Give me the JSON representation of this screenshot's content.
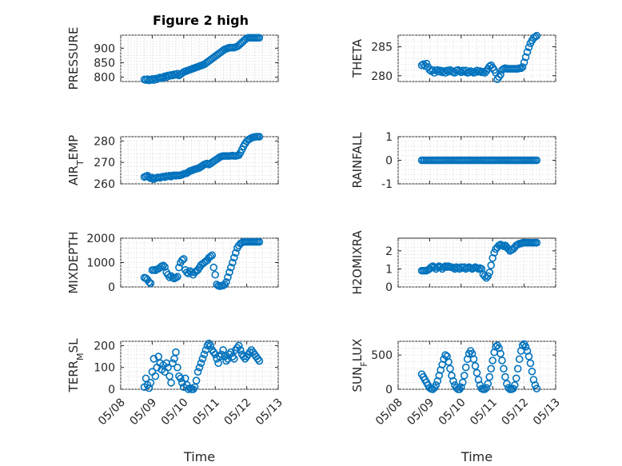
{
  "figure": {
    "title": "Figure 2 high"
  },
  "colors": {
    "marker": "#0072BD",
    "axes": "#262626",
    "grid": "#d9d9d9"
  },
  "x_ticks": [
    "05/08",
    "05/09",
    "05/10",
    "05/11",
    "05/12",
    "05/13"
  ],
  "chart_data": [
    {
      "type": "scatter",
      "ylabel": "PRESSURE",
      "title": "Figure 2 high",
      "xlabel": "",
      "ylim": [
        785,
        945
      ],
      "yticks": [
        800,
        850,
        900
      ],
      "grid": true,
      "x_range": [
        "05/08",
        "05/13"
      ],
      "x": [
        0.75,
        0.8,
        0.85,
        0.9,
        0.95,
        1.0,
        1.05,
        1.1,
        1.15,
        1.2,
        1.25,
        1.3,
        1.35,
        1.4,
        1.45,
        1.5,
        1.55,
        1.6,
        1.65,
        1.7,
        1.75,
        1.8,
        1.85,
        1.9,
        1.95,
        2.0,
        2.05,
        2.1,
        2.15,
        2.2,
        2.25,
        2.3,
        2.35,
        2.4,
        2.45,
        2.5,
        2.55,
        2.6,
        2.65,
        2.7,
        2.75,
        2.8,
        2.85,
        2.9,
        2.95,
        3.0,
        3.05,
        3.1,
        3.15,
        3.2,
        3.25,
        3.3,
        3.35,
        3.4,
        3.45,
        3.5,
        3.55,
        3.6,
        3.65,
        3.7,
        3.75,
        3.8,
        3.85,
        3.9,
        3.95,
        4.0,
        4.05,
        4.1,
        4.15,
        4.2,
        4.25,
        4.3,
        4.35,
        4.4
      ],
      "y": [
        792,
        790,
        793,
        789,
        791,
        794,
        790,
        795,
        793,
        797,
        799,
        796,
        800,
        803,
        800,
        806,
        804,
        808,
        806,
        810,
        808,
        812,
        806,
        810,
        814,
        818,
        820,
        822,
        824,
        826,
        828,
        830,
        832,
        834,
        836,
        838,
        840,
        842,
        844,
        848,
        852,
        856,
        860,
        864,
        868,
        872,
        876,
        880,
        884,
        888,
        892,
        896,
        898,
        900,
        902,
        902,
        902,
        902,
        904,
        906,
        910,
        915,
        920,
        925,
        930,
        934,
        936,
        936,
        936,
        936,
        936,
        936,
        936,
        936
      ]
    },
    {
      "type": "scatter",
      "ylabel": "THETA",
      "xlabel": "",
      "ylim": [
        279,
        287
      ],
      "yticks": [
        280,
        285
      ],
      "grid": true,
      "x_range": [
        "05/08",
        "05/13"
      ],
      "x": [
        0.75,
        0.8,
        0.85,
        0.9,
        0.95,
        1.0,
        1.05,
        1.1,
        1.15,
        1.2,
        1.25,
        1.3,
        1.35,
        1.4,
        1.45,
        1.5,
        1.55,
        1.6,
        1.65,
        1.7,
        1.75,
        1.8,
        1.85,
        1.9,
        1.95,
        2.0,
        2.05,
        2.1,
        2.15,
        2.2,
        2.25,
        2.3,
        2.35,
        2.4,
        2.45,
        2.5,
        2.55,
        2.6,
        2.65,
        2.7,
        2.75,
        2.8,
        2.85,
        2.9,
        2.95,
        3.0,
        3.05,
        3.1,
        3.15,
        3.2,
        3.25,
        3.3,
        3.35,
        3.4,
        3.45,
        3.5,
        3.55,
        3.6,
        3.65,
        3.7,
        3.75,
        3.8,
        3.85,
        3.9,
        3.95,
        4.0,
        4.05,
        4.1,
        4.15,
        4.2,
        4.25,
        4.3,
        4.35,
        4.4
      ],
      "y": [
        281.8,
        282.0,
        281.7,
        282.1,
        281.5,
        281.0,
        280.8,
        281.0,
        280.5,
        280.9,
        281.0,
        280.7,
        280.9,
        280.6,
        280.8,
        280.5,
        280.9,
        280.7,
        281.0,
        280.8,
        280.6,
        280.5,
        280.9,
        281.0,
        280.8,
        280.6,
        280.9,
        280.7,
        280.9,
        280.5,
        280.6,
        280.8,
        280.7,
        280.5,
        280.6,
        280.9,
        280.7,
        280.8,
        280.6,
        280.7,
        280.5,
        280.8,
        281.2,
        281.6,
        281.8,
        281.4,
        281.0,
        280.5,
        279.4,
        279.8,
        280.2,
        281.0,
        281.2,
        281.3,
        281.2,
        281.2,
        281.2,
        281.2,
        281.2,
        281.2,
        281.2,
        281.2,
        281.3,
        281.3,
        281.5,
        282.3,
        283.2,
        284.1,
        284.9,
        285.6,
        286.1,
        286.5,
        286.7,
        286.9
      ]
    },
    {
      "type": "scatter",
      "ylabel": "AIR_TEMP",
      "xlabel": "",
      "ylim": [
        260,
        282
      ],
      "yticks": [
        260,
        270,
        280
      ],
      "grid": true,
      "x_range": [
        "05/08",
        "05/13"
      ],
      "x": [
        0.75,
        0.8,
        0.85,
        0.9,
        0.95,
        1.0,
        1.05,
        1.1,
        1.15,
        1.2,
        1.25,
        1.3,
        1.35,
        1.4,
        1.45,
        1.5,
        1.55,
        1.6,
        1.65,
        1.7,
        1.75,
        1.8,
        1.85,
        1.9,
        1.95,
        2.0,
        2.05,
        2.1,
        2.15,
        2.2,
        2.25,
        2.3,
        2.35,
        2.4,
        2.45,
        2.5,
        2.55,
        2.6,
        2.65,
        2.7,
        2.75,
        2.8,
        2.85,
        2.9,
        2.95,
        3.0,
        3.05,
        3.1,
        3.15,
        3.2,
        3.25,
        3.3,
        3.35,
        3.4,
        3.45,
        3.5,
        3.55,
        3.6,
        3.65,
        3.7,
        3.75,
        3.8,
        3.85,
        3.9,
        3.95,
        4.0,
        4.05,
        4.1,
        4.15,
        4.2,
        4.25,
        4.3,
        4.35,
        4.4
      ],
      "y": [
        263.2,
        263.5,
        263.8,
        263.1,
        262.6,
        262.9,
        262.2,
        262.6,
        262.9,
        263.0,
        262.8,
        263.2,
        263.4,
        263.1,
        263.6,
        263.5,
        263.8,
        263.4,
        263.9,
        264.0,
        263.8,
        264.0,
        263.9,
        264.0,
        264.3,
        264.6,
        264.8,
        265.0,
        265.5,
        266.0,
        266.2,
        266.5,
        266.8,
        267.0,
        267.2,
        267.5,
        268.0,
        268.5,
        269.0,
        269.3,
        269.5,
        269.0,
        269.4,
        270.0,
        270.5,
        271.0,
        271.5,
        272.0,
        272.5,
        272.8,
        273.0,
        273.0,
        273.0,
        273.0,
        273.0,
        273.1,
        273.2,
        273.0,
        273.0,
        273.2,
        273.4,
        274.5,
        276.0,
        277.5,
        278.8,
        279.8,
        280.5,
        281.0,
        281.4,
        281.7,
        281.9,
        282.0,
        282.0,
        282.0
      ]
    },
    {
      "type": "scatter",
      "ylabel": "RAINFALL",
      "xlabel": "",
      "ylim": [
        -1,
        1
      ],
      "yticks": [
        -1,
        0,
        1
      ],
      "grid": true,
      "x_range": [
        "05/08",
        "05/13"
      ],
      "x": [
        0.75,
        0.8,
        0.85,
        0.9,
        0.95,
        1.0,
        1.05,
        1.1,
        1.15,
        1.2,
        1.25,
        1.3,
        1.35,
        1.4,
        1.45,
        1.5,
        1.55,
        1.6,
        1.65,
        1.7,
        1.75,
        1.8,
        1.85,
        1.9,
        1.95,
        2.0,
        2.05,
        2.1,
        2.15,
        2.2,
        2.25,
        2.3,
        2.35,
        2.4,
        2.45,
        2.5,
        2.55,
        2.6,
        2.65,
        2.7,
        2.75,
        2.8,
        2.85,
        2.9,
        2.95,
        3.0,
        3.05,
        3.1,
        3.15,
        3.2,
        3.25,
        3.3,
        3.35,
        3.4,
        3.45,
        3.5,
        3.55,
        3.6,
        3.65,
        3.7,
        3.75,
        3.8,
        3.85,
        3.9,
        3.95,
        4.0,
        4.05,
        4.1,
        4.15,
        4.2,
        4.25,
        4.3,
        4.35,
        4.4
      ],
      "y": [
        0,
        0,
        0,
        0,
        0,
        0,
        0,
        0,
        0,
        0,
        0,
        0,
        0,
        0,
        0,
        0,
        0,
        0,
        0,
        0,
        0,
        0,
        0,
        0,
        0,
        0,
        0,
        0,
        0,
        0,
        0,
        0,
        0,
        0,
        0,
        0,
        0,
        0,
        0,
        0,
        0,
        0,
        0,
        0,
        0,
        0,
        0,
        0,
        0,
        0,
        0,
        0,
        0,
        0,
        0,
        0,
        0,
        0,
        0,
        0,
        0,
        0,
        0,
        0,
        0,
        0,
        0,
        0,
        0,
        0,
        0,
        0,
        0,
        0
      ]
    },
    {
      "type": "scatter",
      "ylabel": "MIXDEPTH",
      "xlabel": "",
      "ylim": [
        0,
        2000
      ],
      "yticks": [
        0,
        1000,
        2000
      ],
      "grid": true,
      "x_range": [
        "05/08",
        "05/13"
      ],
      "x": [
        0.75,
        0.8,
        0.85,
        0.9,
        0.95,
        1.0,
        1.05,
        1.1,
        1.15,
        1.2,
        1.25,
        1.3,
        1.35,
        1.4,
        1.45,
        1.5,
        1.55,
        1.6,
        1.65,
        1.7,
        1.75,
        1.8,
        1.85,
        1.9,
        1.95,
        2.0,
        2.05,
        2.1,
        2.15,
        2.2,
        2.25,
        2.3,
        2.35,
        2.4,
        2.45,
        2.5,
        2.55,
        2.6,
        2.65,
        2.7,
        2.75,
        2.8,
        2.85,
        2.9,
        2.95,
        3.0,
        3.05,
        3.1,
        3.15,
        3.2,
        3.25,
        3.3,
        3.35,
        3.4,
        3.45,
        3.5,
        3.55,
        3.6,
        3.65,
        3.7,
        3.75,
        3.8,
        3.85,
        3.9,
        3.95,
        4.0,
        4.05,
        4.1,
        4.15,
        4.2,
        4.25,
        4.3,
        4.35,
        4.4
      ],
      "y": [
        380,
        360,
        300,
        200,
        150,
        690,
        700,
        680,
        720,
        750,
        800,
        850,
        880,
        820,
        600,
        500,
        400,
        450,
        380,
        350,
        380,
        420,
        800,
        1000,
        1100,
        1150,
        700,
        600,
        550,
        650,
        600,
        500,
        600,
        650,
        700,
        800,
        900,
        950,
        1000,
        1050,
        1100,
        1200,
        1250,
        1300,
        800,
        500,
        100,
        50,
        30,
        50,
        60,
        100,
        200,
        400,
        600,
        800,
        1000,
        1200,
        1400,
        1600,
        1700,
        1780,
        1820,
        1850,
        1850,
        1850,
        1850,
        1850,
        1850,
        1850,
        1850,
        1850,
        1850,
        1850
      ]
    },
    {
      "type": "scatter",
      "ylabel": "H2OMIXRA",
      "xlabel": "",
      "ylim": [
        0,
        2.7
      ],
      "yticks": [
        0,
        1,
        2
      ],
      "grid": true,
      "x_range": [
        "05/08",
        "05/13"
      ],
      "x": [
        0.75,
        0.8,
        0.85,
        0.9,
        0.95,
        1.0,
        1.05,
        1.1,
        1.15,
        1.2,
        1.25,
        1.3,
        1.35,
        1.4,
        1.45,
        1.5,
        1.55,
        1.6,
        1.65,
        1.7,
        1.75,
        1.8,
        1.85,
        1.9,
        1.95,
        2.0,
        2.05,
        2.1,
        2.15,
        2.2,
        2.25,
        2.3,
        2.35,
        2.4,
        2.45,
        2.5,
        2.55,
        2.6,
        2.65,
        2.7,
        2.75,
        2.8,
        2.85,
        2.9,
        2.95,
        3.0,
        3.05,
        3.1,
        3.15,
        3.2,
        3.25,
        3.3,
        3.35,
        3.4,
        3.45,
        3.5,
        3.55,
        3.6,
        3.65,
        3.7,
        3.75,
        3.8,
        3.85,
        3.9,
        3.95,
        4.0,
        4.05,
        4.1,
        4.15,
        4.2,
        4.25,
        4.3,
        4.35,
        4.4
      ],
      "y": [
        0.9,
        0.9,
        0.9,
        0.9,
        0.95,
        1.0,
        1.1,
        1.15,
        1.1,
        1.0,
        1.1,
        1.15,
        1.1,
        1.0,
        1.1,
        1.15,
        1.1,
        1.15,
        1.1,
        1.1,
        1.05,
        1.0,
        1.1,
        1.05,
        1.0,
        1.1,
        1.05,
        1.1,
        1.0,
        1.05,
        1.1,
        1.05,
        1.0,
        1.05,
        1.1,
        1.05,
        1.0,
        1.05,
        1.0,
        0.7,
        0.6,
        0.5,
        0.6,
        0.8,
        1.2,
        1.6,
        1.9,
        2.1,
        2.2,
        2.3,
        2.35,
        2.3,
        2.25,
        2.3,
        2.2,
        2.1,
        2.0,
        2.05,
        2.1,
        2.2,
        2.3,
        2.35,
        2.4,
        2.4,
        2.45,
        2.45,
        2.45,
        2.45,
        2.45,
        2.45,
        2.45,
        2.45,
        2.45,
        2.45
      ]
    },
    {
      "type": "scatter",
      "ylabel": "TERR_MSL",
      "xlabel": "Time",
      "ylim": [
        0,
        220
      ],
      "yticks": [
        0,
        100,
        200
      ],
      "grid": true,
      "x_range": [
        "05/08",
        "05/13"
      ],
      "x": [
        0.75,
        0.8,
        0.85,
        0.9,
        0.95,
        1.0,
        1.05,
        1.1,
        1.15,
        1.2,
        1.25,
        1.3,
        1.35,
        1.4,
        1.45,
        1.5,
        1.55,
        1.6,
        1.65,
        1.7,
        1.75,
        1.8,
        1.85,
        1.9,
        1.95,
        2.0,
        2.05,
        2.1,
        2.15,
        2.2,
        2.25,
        2.3,
        2.35,
        2.4,
        2.45,
        2.5,
        2.55,
        2.6,
        2.65,
        2.7,
        2.75,
        2.8,
        2.85,
        2.9,
        2.95,
        3.0,
        3.05,
        3.1,
        3.15,
        3.2,
        3.25,
        3.3,
        3.35,
        3.4,
        3.45,
        3.5,
        3.55,
        3.6,
        3.65,
        3.7,
        3.75,
        3.8,
        3.85,
        3.9,
        3.95,
        4.0,
        4.05,
        4.1,
        4.15,
        4.2,
        4.25,
        4.3,
        4.35,
        4.4
      ],
      "y": [
        10,
        50,
        20,
        5,
        30,
        80,
        140,
        60,
        100,
        150,
        120,
        90,
        110,
        80,
        120,
        100,
        60,
        30,
        120,
        140,
        170,
        100,
        60,
        50,
        30,
        10,
        50,
        20,
        0,
        5,
        0,
        0,
        10,
        40,
        80,
        100,
        120,
        140,
        160,
        180,
        200,
        210,
        200,
        180,
        170,
        160,
        140,
        120,
        150,
        160,
        180,
        150,
        130,
        140,
        160,
        170,
        150,
        140,
        180,
        190,
        200,
        180,
        160,
        150,
        140,
        150,
        160,
        170,
        180,
        170,
        160,
        150,
        140,
        130
      ]
    },
    {
      "type": "scatter",
      "ylabel": "SUN_FLUX",
      "xlabel": "Time",
      "ylim": [
        0,
        700
      ],
      "yticks": [
        0,
        500
      ],
      "grid": true,
      "x_range": [
        "05/08",
        "05/13"
      ],
      "x": [
        0.75,
        0.8,
        0.85,
        0.9,
        0.95,
        1.0,
        1.05,
        1.1,
        1.15,
        1.2,
        1.25,
        1.3,
        1.35,
        1.4,
        1.45,
        1.5,
        1.55,
        1.6,
        1.65,
        1.7,
        1.75,
        1.8,
        1.85,
        1.9,
        1.95,
        2.0,
        2.05,
        2.1,
        2.15,
        2.2,
        2.25,
        2.3,
        2.35,
        2.4,
        2.45,
        2.5,
        2.55,
        2.6,
        2.65,
        2.7,
        2.75,
        2.8,
        2.85,
        2.9,
        2.95,
        3.0,
        3.05,
        3.1,
        3.15,
        3.2,
        3.25,
        3.3,
        3.35,
        3.4,
        3.45,
        3.5,
        3.55,
        3.6,
        3.65,
        3.7,
        3.75,
        3.8,
        3.85,
        3.9,
        3.95,
        4.0,
        4.05,
        4.1,
        4.15,
        4.2,
        4.25,
        4.3,
        4.35,
        4.4
      ],
      "y": [
        220,
        180,
        140,
        100,
        60,
        20,
        5,
        0,
        20,
        60,
        120,
        200,
        280,
        360,
        440,
        500,
        480,
        400,
        300,
        200,
        120,
        60,
        20,
        0,
        0,
        30,
        100,
        200,
        320,
        440,
        520,
        560,
        520,
        440,
        340,
        240,
        140,
        60,
        10,
        0,
        0,
        20,
        80,
        180,
        300,
        420,
        540,
        620,
        640,
        600,
        520,
        420,
        300,
        180,
        80,
        20,
        0,
        0,
        10,
        60,
        160,
        300,
        440,
        560,
        640,
        660,
        620,
        560,
        480,
        380,
        260,
        140,
        60,
        10
      ]
    }
  ]
}
